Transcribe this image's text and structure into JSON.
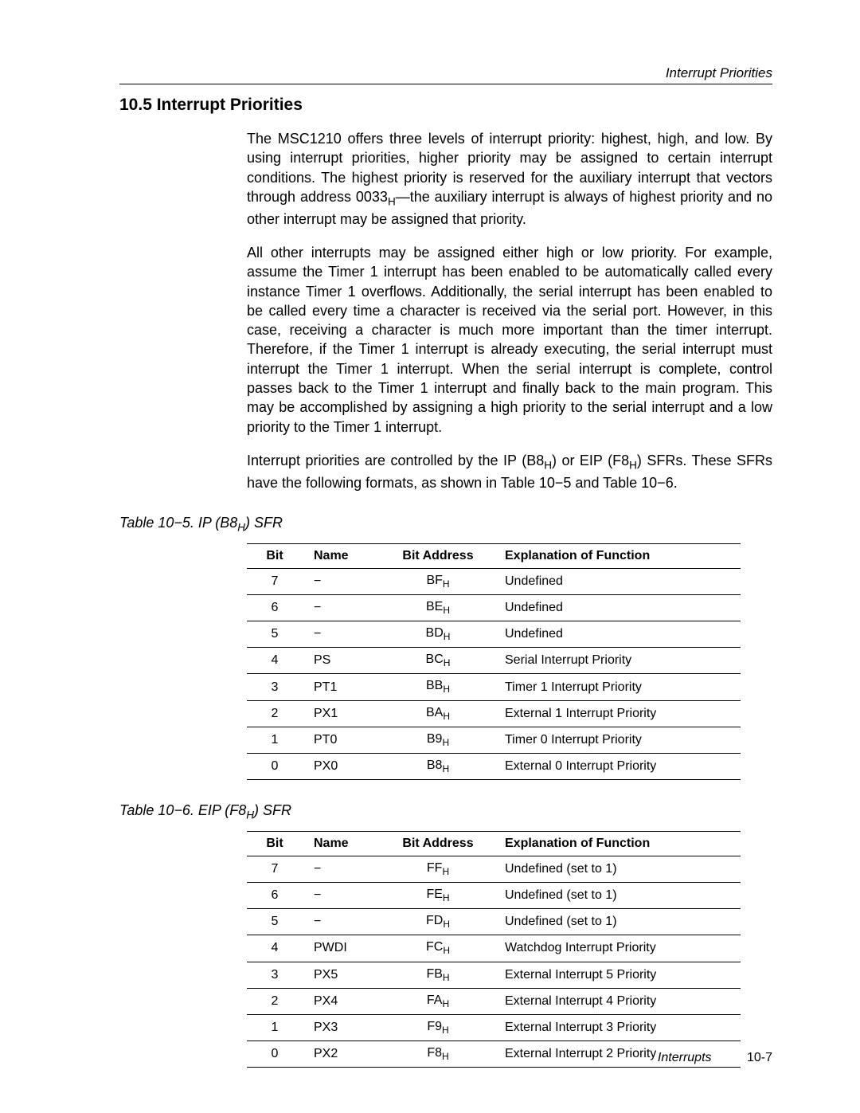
{
  "header": {
    "right": "Interrupt Priorities"
  },
  "section": {
    "number": "10.5",
    "title": "Interrupt Priorities"
  },
  "paragraphs": {
    "p1a": "The MSC1210 offers three levels of interrupt priority: highest, high, and low. By using interrupt priorities, higher priority may be assigned to certain interrupt conditions. The highest priority is reserved for the auxiliary interrupt that vectors through address 0033",
    "p1b": "—the auxiliary interrupt is always of highest priority and no other interrupt may be assigned that priority.",
    "p2": "All other interrupts may be assigned either high or low priority. For example, assume the Timer 1 interrupt has been enabled to be automatically called every instance Timer 1 overflows. Additionally, the serial interrupt has been enabled to be called every time a character is received via the serial port. However, in this case, receiving a character is much more important than the timer interrupt. Therefore, if the Timer 1 interrupt is already executing, the serial interrupt must interrupt the Timer 1 interrupt. When the serial interrupt is complete, control passes back to the Timer 1 interrupt and finally back to the main program. This may be accomplished by assigning a high priority to the serial interrupt and a low priority to the Timer 1 interrupt.",
    "p3a": "Interrupt priorities are controlled by the IP (B8",
    "p3b": ") or EIP (F8",
    "p3c": ") SFRs. These SFRs have the following formats, as shown in Table 10−5 and Table 10−6."
  },
  "table1": {
    "caption_pre": "Table 10−5. IP (B8",
    "caption_post": ") SFR",
    "headers": {
      "bit": "Bit",
      "name": "Name",
      "addr": "Bit Address",
      "expl": "Explanation of Function"
    },
    "rows": [
      {
        "bit": "7",
        "name": "−",
        "addr": "BF",
        "expl": "Undefined"
      },
      {
        "bit": "6",
        "name": "−",
        "addr": "BE",
        "expl": "Undefined"
      },
      {
        "bit": "5",
        "name": "−",
        "addr": "BD",
        "expl": "Undefined"
      },
      {
        "bit": "4",
        "name": "PS",
        "addr": "BC",
        "expl": "Serial Interrupt Priority"
      },
      {
        "bit": "3",
        "name": "PT1",
        "addr": "BB",
        "expl": "Timer 1 Interrupt Priority"
      },
      {
        "bit": "2",
        "name": "PX1",
        "addr": "BA",
        "expl": "External 1 Interrupt Priority"
      },
      {
        "bit": "1",
        "name": "PT0",
        "addr": "B9",
        "expl": "Timer 0 Interrupt Priority"
      },
      {
        "bit": "0",
        "name": "PX0",
        "addr": "B8",
        "expl": "External 0 Interrupt Priority"
      }
    ]
  },
  "table2": {
    "caption_pre": "Table 10−6. EIP (F8",
    "caption_post": ") SFR",
    "headers": {
      "bit": "Bit",
      "name": "Name",
      "addr": "Bit Address",
      "expl": "Explanation of Function"
    },
    "rows": [
      {
        "bit": "7",
        "name": "−",
        "addr": "FF",
        "expl": "Undefined (set to 1)"
      },
      {
        "bit": "6",
        "name": "−",
        "addr": "FE",
        "expl": "Undefined (set to 1)"
      },
      {
        "bit": "5",
        "name": "−",
        "addr": "FD",
        "expl": "Undefined (set to 1)"
      },
      {
        "bit": "4",
        "name": "PWDI",
        "addr": "FC",
        "expl": "Watchdog Interrupt Priority"
      },
      {
        "bit": "3",
        "name": "PX5",
        "addr": "FB",
        "expl": "External Interrupt 5 Priority"
      },
      {
        "bit": "2",
        "name": "PX4",
        "addr": "FA",
        "expl": "External Interrupt 4 Priority"
      },
      {
        "bit": "1",
        "name": "PX3",
        "addr": "F9",
        "expl": "External Interrupt 3 Priority"
      },
      {
        "bit": "0",
        "name": "PX2",
        "addr": "F8",
        "expl": "External Interrupt 2 Priority"
      }
    ]
  },
  "footer": {
    "chapter": "Interrupts",
    "page": "10-7"
  },
  "sub": "H"
}
